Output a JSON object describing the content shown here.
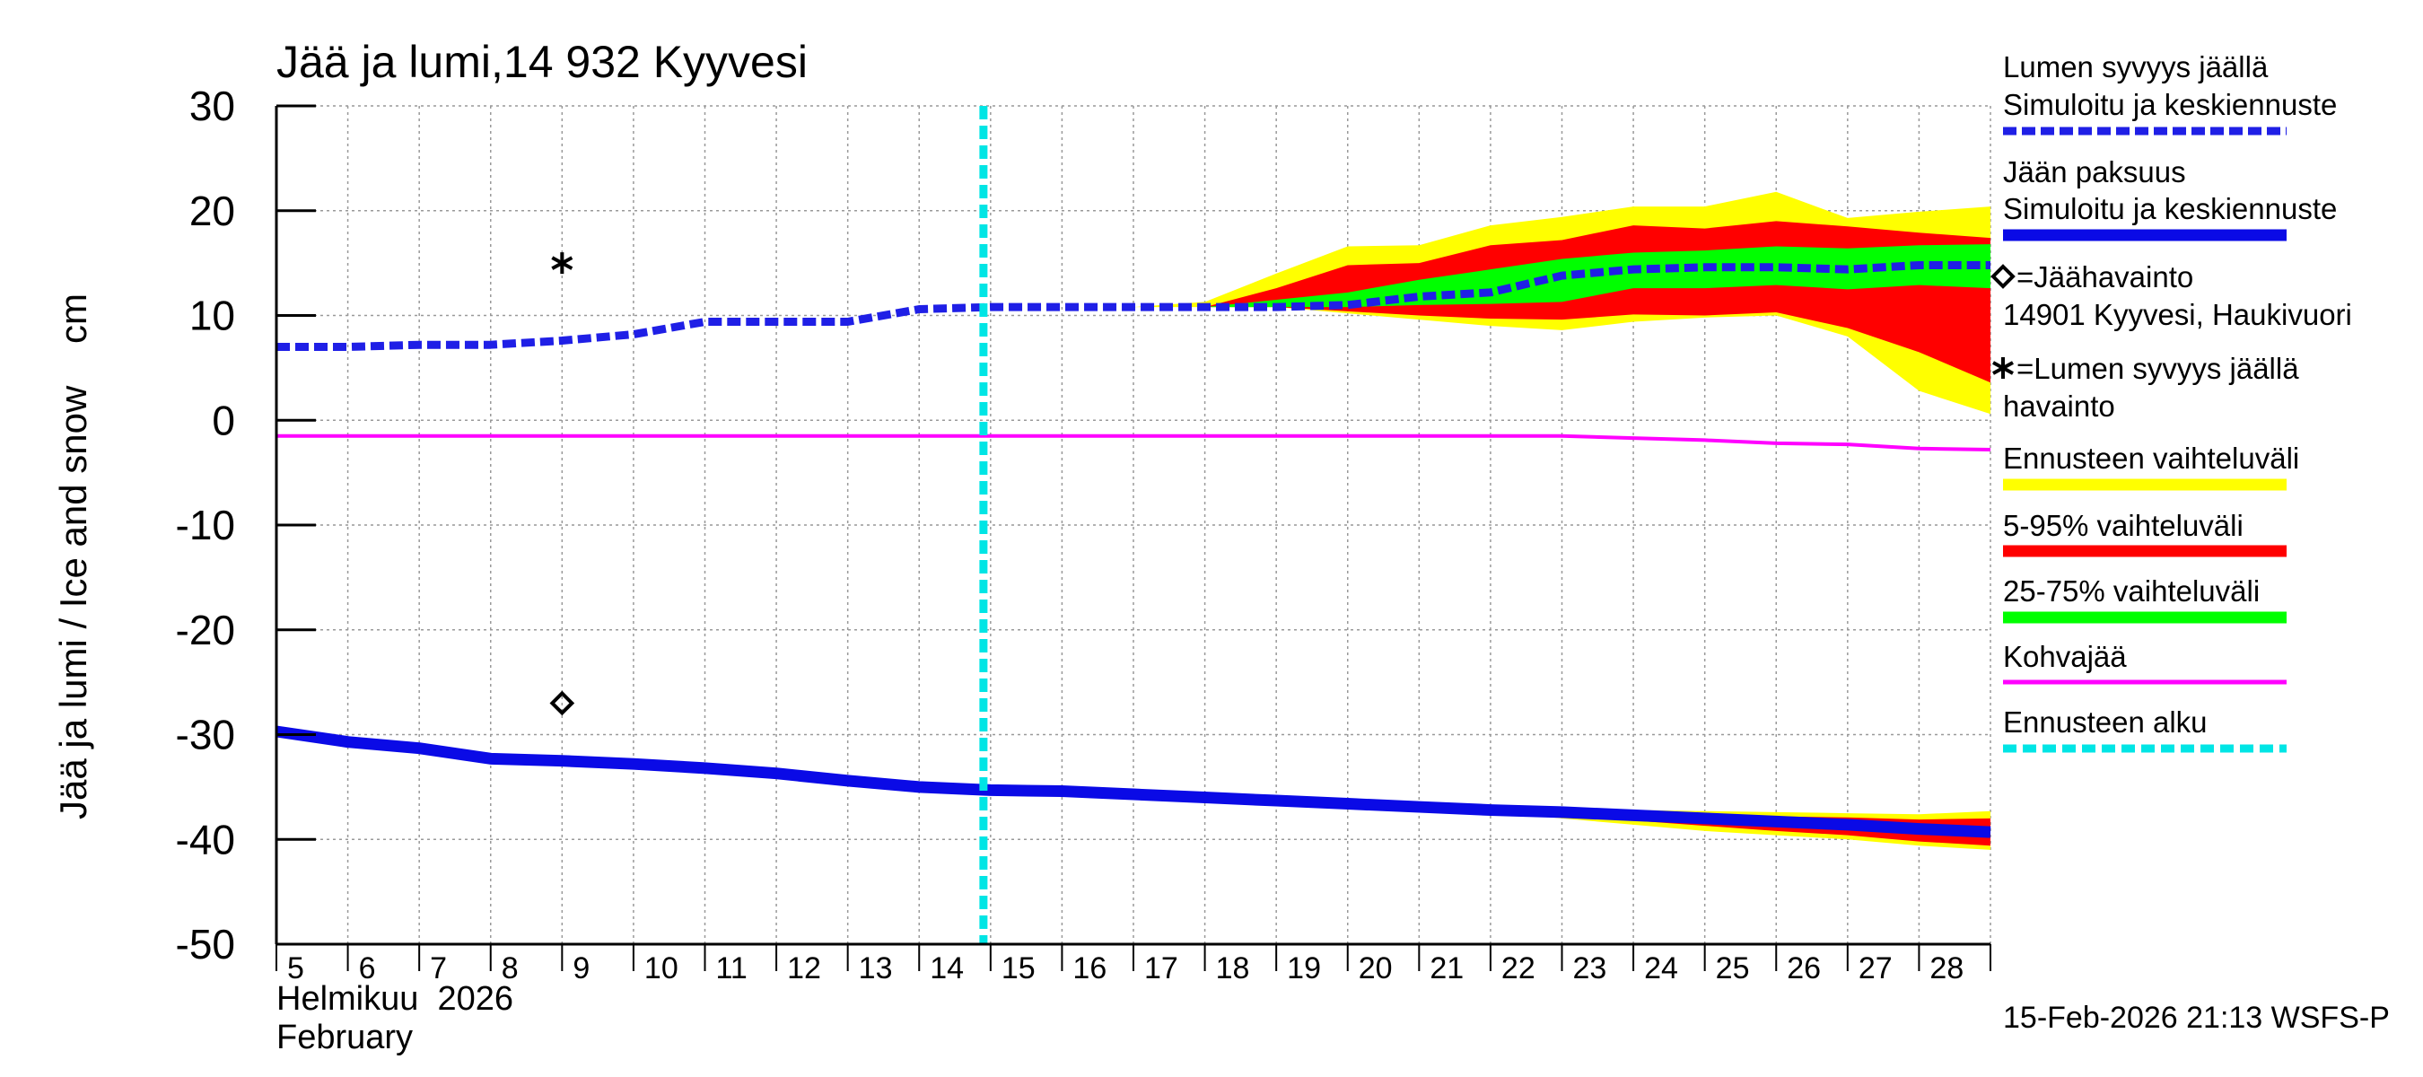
{
  "chart_data": {
    "type": "area",
    "title": "Jää ja lumi,14 932 Kyyvesi",
    "ylabel": "Jää ja lumi / Ice and snow    cm",
    "ylim": [
      -50,
      30
    ],
    "yticks": [
      30,
      20,
      10,
      0,
      -10,
      -20,
      -30,
      -40,
      -50
    ],
    "xlim": [
      5,
      29
    ],
    "xticks": [
      "5",
      "6",
      "7",
      "8",
      "9",
      "10",
      "11",
      "12",
      "13",
      "14",
      "15",
      "16",
      "17",
      "18",
      "19",
      "20",
      "21",
      "22",
      "23",
      "24",
      "25",
      "26",
      "27",
      "28"
    ],
    "x_month_fi": "Helmikuu  2026",
    "x_month_en": "February",
    "grid": true,
    "forecast_start": 14.9,
    "timestamp": "15-Feb-2026 21:13 WSFS-P",
    "legend": {
      "snow_title": "Lumen syvyys jäällä",
      "snow_sub": "Simuloitu ja keskiennuste",
      "ice_title": "Jään paksuus",
      "ice_sub": "Simuloitu ja keskiennuste",
      "ice_obs_line1": "=Jäähavainto",
      "ice_obs_line2": "14901 Kyyvesi, Haukivuori",
      "snow_obs_line1": "=Lumen syvyys jäällä",
      "snow_obs_line2": "havainto",
      "range_full": "Ennusteen vaihteluväli",
      "range_5_95": "5-95% vaihteluväli",
      "range_25_75": "25-75% vaihteluväli",
      "slush": "Kohvajää",
      "forecast_start": "Ennusteen alku"
    },
    "colors": {
      "snow": "#1f1fe6",
      "ice": "#0a0ae6",
      "range_full": "#ffff00",
      "range_5_95": "#ff0000",
      "range_25_75": "#00ff00",
      "slush": "#ff00ff",
      "forecast_start": "#00e5e5"
    },
    "series": [
      {
        "name": "Lumen syvyys jäällä",
        "x": [
          5,
          6,
          7,
          8,
          9,
          10,
          11,
          12,
          13,
          14,
          15,
          16,
          17,
          18,
          19,
          20,
          21,
          22,
          23,
          24,
          25,
          26,
          27,
          28,
          29
        ],
        "values": [
          7,
          7,
          7.2,
          7.2,
          7.6,
          8.2,
          9.4,
          9.4,
          9.4,
          10.6,
          10.8,
          10.8,
          10.8,
          10.8,
          10.8,
          11,
          11.8,
          12.2,
          13.8,
          14.4,
          14.6,
          14.6,
          14.4,
          14.8,
          14.8
        ]
      },
      {
        "name": "Jään paksuus",
        "x": [
          5,
          6,
          7,
          8,
          9,
          10,
          11,
          12,
          13,
          14,
          15,
          16,
          17,
          18,
          19,
          20,
          21,
          22,
          23,
          24,
          25,
          26,
          27,
          28,
          29
        ],
        "values": [
          -29.7,
          -30.7,
          -31.3,
          -32.3,
          -32.5,
          -32.8,
          -33.2,
          -33.7,
          -34.4,
          -35,
          -35.3,
          -35.4,
          -35.7,
          -36,
          -36.3,
          -36.6,
          -36.9,
          -37.2,
          -37.4,
          -37.7,
          -38,
          -38.3,
          -38.6,
          -39,
          -39.3
        ]
      },
      {
        "name": "Kohvajää",
        "x": [
          5,
          6,
          7,
          8,
          9,
          10,
          11,
          12,
          13,
          14,
          15,
          16,
          17,
          18,
          19,
          20,
          21,
          22,
          23,
          24,
          25,
          26,
          27,
          28,
          29
        ],
        "values": [
          -1.5,
          -1.5,
          -1.5,
          -1.5,
          -1.5,
          -1.5,
          -1.5,
          -1.5,
          -1.5,
          -1.5,
          -1.5,
          -1.5,
          -1.5,
          -1.5,
          -1.5,
          -1.5,
          -1.5,
          -1.5,
          -1.5,
          -1.7,
          -1.9,
          -2.2,
          -2.3,
          -2.7,
          -2.8
        ]
      }
    ],
    "snow_bands": {
      "x": [
        17,
        18,
        19,
        20,
        21,
        22,
        23,
        24,
        25,
        26,
        27,
        28,
        29
      ],
      "full_upper": [
        10.8,
        11.3,
        14,
        16.6,
        16.7,
        18.6,
        19.4,
        20.4,
        20.4,
        21.8,
        19.3,
        19.9,
        20.4
      ],
      "full_lower": [
        10.8,
        10.8,
        10.8,
        10.2,
        9.6,
        9,
        8.6,
        9.4,
        9.8,
        10,
        8,
        2.8,
        0.6
      ],
      "p95_upper": [
        10.8,
        10.8,
        12.6,
        14.8,
        15,
        16.7,
        17.2,
        18.6,
        18.3,
        19,
        18.5,
        17.9,
        17.4
      ],
      "p5_lower": [
        10.8,
        10.8,
        10.8,
        10.4,
        10,
        9.7,
        9.6,
        10.1,
        10,
        10.3,
        8.8,
        6.5,
        3.6
      ],
      "p75_upper": [
        10.8,
        10.8,
        11.5,
        12.2,
        13.4,
        14.4,
        15.4,
        16,
        16.2,
        16.6,
        16.4,
        16.7,
        16.8
      ],
      "p25_lower": [
        10.8,
        10.8,
        10.8,
        10.8,
        11,
        11.1,
        11.3,
        12.6,
        12.6,
        12.9,
        12.5,
        12.9,
        12.6
      ]
    },
    "ice_bands": {
      "x": [
        21,
        22,
        23,
        24,
        25,
        26,
        27,
        28,
        29
      ],
      "full_upper": [
        -36.9,
        -37,
        -37.1,
        -37.2,
        -37.3,
        -37.4,
        -37.5,
        -37.6,
        -37.3
      ],
      "full_lower": [
        -36.9,
        -37.3,
        -38,
        -38.6,
        -39.2,
        -39.6,
        -40,
        -40.6,
        -41
      ],
      "p95_upper": [
        -36.9,
        -37.1,
        -37.2,
        -37.4,
        -37.6,
        -37.8,
        -37.9,
        -38.1,
        -38
      ],
      "p5_lower": [
        -36.9,
        -37.3,
        -37.7,
        -38.2,
        -38.7,
        -39.2,
        -39.6,
        -40.2,
        -40.6
      ]
    },
    "observations": {
      "snow": {
        "x": 9,
        "value": 15
      },
      "ice": {
        "x": 9,
        "value": -27
      }
    }
  }
}
